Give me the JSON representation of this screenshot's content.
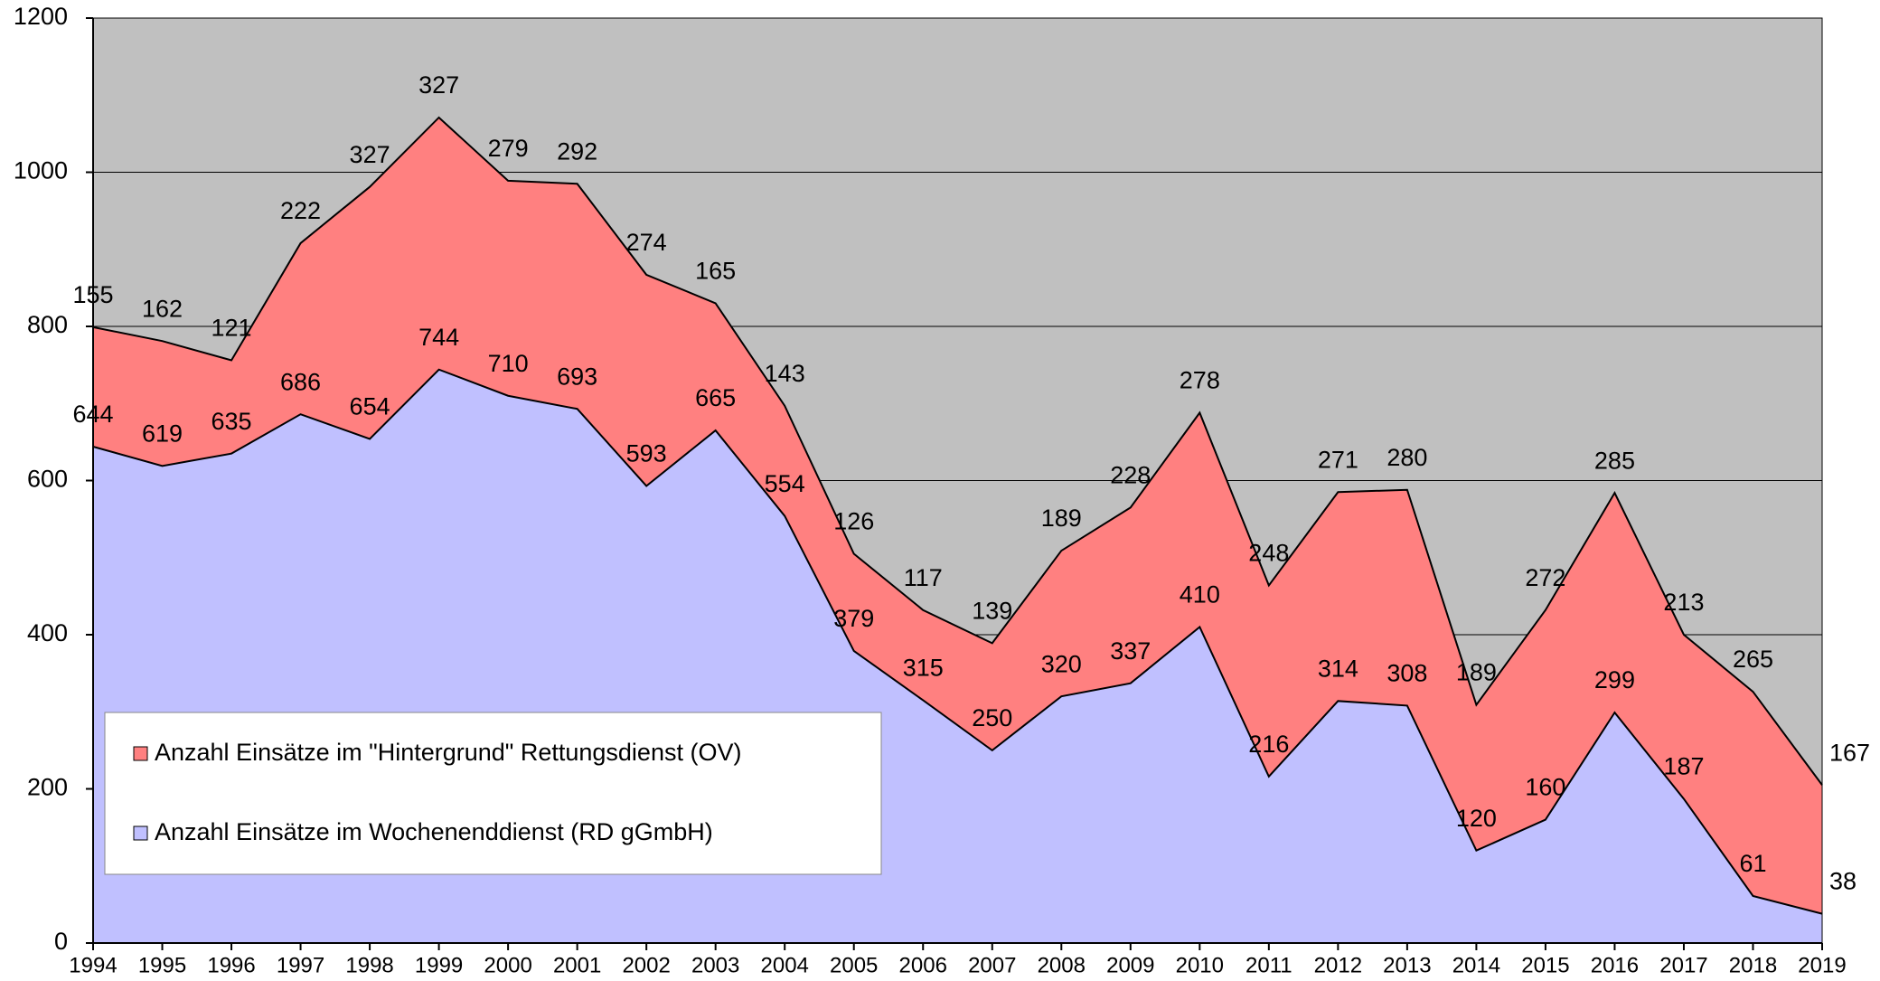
{
  "chart_data": {
    "type": "stacked_area",
    "x": [
      1994,
      1995,
      1996,
      1997,
      1998,
      1999,
      2000,
      2001,
      2002,
      2003,
      2004,
      2005,
      2006,
      2007,
      2008,
      2009,
      2010,
      2011,
      2012,
      2013,
      2014,
      2015,
      2016,
      2017,
      2018,
      2019
    ],
    "xlim": [
      1994,
      2019
    ],
    "ylim": [
      0,
      1200
    ],
    "yticks": [
      0,
      200,
      400,
      600,
      800,
      1000,
      1200
    ],
    "grid": true,
    "series": [
      {
        "name": "Anzahl Einsätze im Wochenenddienst (RD gGmbH)",
        "color": "#c0c0ff",
        "values": [
          644,
          619,
          635,
          686,
          654,
          744,
          710,
          693,
          593,
          665,
          554,
          379,
          315,
          250,
          320,
          337,
          410,
          216,
          314,
          308,
          120,
          160,
          299,
          187,
          61,
          38
        ]
      },
      {
        "name": "Anzahl Einsätze im \"Hintergrund\" Rettungsdienst (OV)",
        "color": "#ff8080",
        "values": [
          155,
          162,
          121,
          222,
          327,
          327,
          279,
          292,
          274,
          165,
          143,
          126,
          117,
          139,
          189,
          228,
          278,
          248,
          271,
          280,
          189,
          272,
          285,
          213,
          265,
          167
        ]
      }
    ],
    "legend": "lower left",
    "plot_background": "#c0c0c0"
  }
}
